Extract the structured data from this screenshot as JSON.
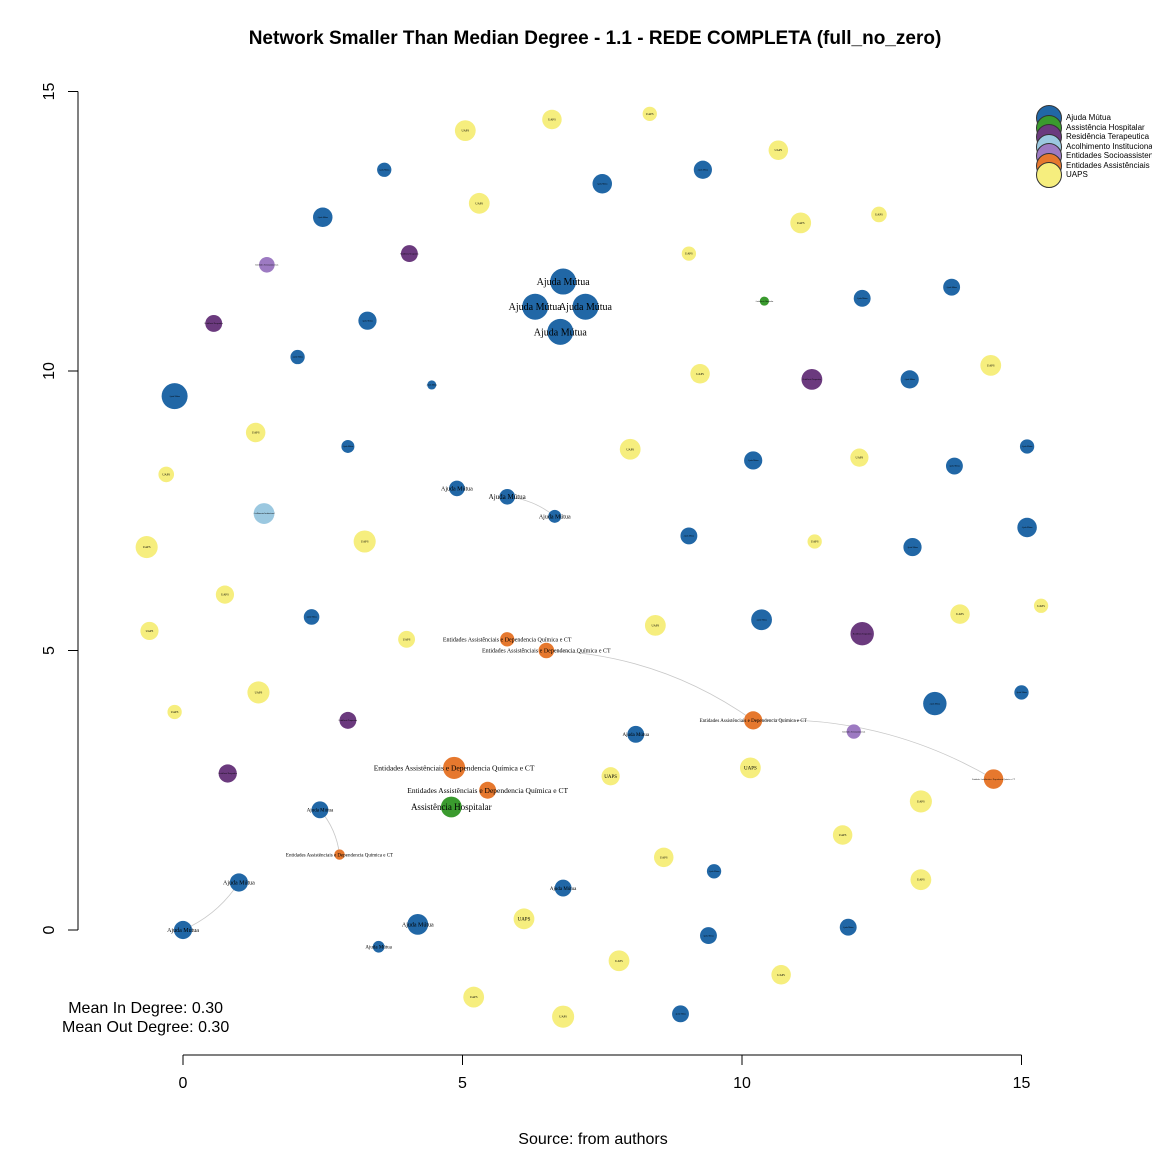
{
  "chart_data": {
    "type": "scatter",
    "title": "Network Smaller Than Median Degree - 1.1 - REDE COMPLETA (full_no_zero)",
    "source": "Source: from authors",
    "stats": {
      "mean_in": "Mean In Degree: 0.30",
      "mean_out": "Mean Out Degree: 0.30"
    },
    "xlim": [
      0,
      15
    ],
    "ylim": [
      0,
      15
    ],
    "x_ticks": [
      0,
      5,
      10,
      15
    ],
    "y_ticks": [
      0,
      5,
      10,
      15
    ],
    "grid": false,
    "legend_position": "top-right",
    "categories": {
      "AM": {
        "name": "Ajuda Mútua",
        "color": "#2167a6"
      },
      "AH": {
        "name": "Assistência Hospitalar",
        "color": "#3a9a2e"
      },
      "RT": {
        "name": "Residência Terapeutica",
        "color": "#6b3a7e"
      },
      "AI": {
        "name": "Acolhimento Institucional",
        "color": "#9bc8e0"
      },
      "ES": {
        "name": "Entidades Socioassistenciais",
        "color": "#9d7ac2"
      },
      "EA": {
        "name": "Entidades Assistênciais e Dependencia Química e CT",
        "color": "#e6782e"
      },
      "UA": {
        "name": "UAPS",
        "color": "#f6ee7e"
      }
    },
    "legend": [
      "Ajuda Mútua",
      "Assistência Hospitalar",
      "Residência Terapeutica",
      "Acolhimento Institucional",
      "Entidades Socioassistenciais",
      "Entidades Assistênciais e Dependencia Química e CT",
      "UAPS"
    ],
    "legend_colors": [
      "#2167a6",
      "#3a9a2e",
      "#6b3a7e",
      "#9bc8e0",
      "#9d7ac2",
      "#e6782e",
      "#f6ee7e"
    ],
    "nodes": [
      {
        "c": "AM",
        "x": 6.8,
        "y": 11.6,
        "s": 2,
        "l": "Ajuda Mútua",
        "ls": 10
      },
      {
        "c": "AM",
        "x": 6.3,
        "y": 11.15,
        "s": 2,
        "l": "Ajuda Mútua",
        "ls": 10
      },
      {
        "c": "AM",
        "x": 7.2,
        "y": 11.15,
        "s": 2,
        "l": "Ajuda Mútua",
        "ls": 10
      },
      {
        "c": "AM",
        "x": 6.75,
        "y": 10.7,
        "s": 2,
        "l": "Ajuda Mútua",
        "ls": 10
      },
      {
        "c": "AM",
        "x": -0.15,
        "y": 9.55,
        "s": 2,
        "l": "Ajuda Mútua",
        "ls": 2
      },
      {
        "c": "AM",
        "x": 2.5,
        "y": 12.75,
        "s": 1.5,
        "l": "Ajuda Mútua",
        "ls": 2
      },
      {
        "c": "AM",
        "x": 3.6,
        "y": 13.6,
        "s": 1.1,
        "l": "Ajuda Mútua",
        "ls": 2
      },
      {
        "c": "AM",
        "x": 7.5,
        "y": 13.35,
        "s": 1.5,
        "l": "Ajuda Mútua",
        "ls": 2
      },
      {
        "c": "AM",
        "x": 9.3,
        "y": 13.6,
        "s": 1.4,
        "l": "Ajuda Mútua",
        "ls": 2
      },
      {
        "c": "AM",
        "x": 3.3,
        "y": 10.9,
        "s": 1.4,
        "l": "Ajuda Mútua",
        "ls": 2
      },
      {
        "c": "AM",
        "x": 2.05,
        "y": 10.25,
        "s": 1.1,
        "l": "Ajuda Mútua",
        "ls": 2
      },
      {
        "c": "AM",
        "x": 4.45,
        "y": 9.75,
        "s": 0.7,
        "l": "Ajuda Mútua",
        "ls": 2
      },
      {
        "c": "AM",
        "x": 2.95,
        "y": 8.65,
        "s": 1,
        "l": "Ajuda Mútua",
        "ls": 2
      },
      {
        "c": "AM",
        "x": 4.9,
        "y": 7.9,
        "s": 1.2,
        "l": "Ajuda Mútua",
        "ls": 6
      },
      {
        "c": "AM",
        "x": 5.8,
        "y": 7.75,
        "s": 1.2,
        "l": "Ajuda Mútua",
        "ls": 7
      },
      {
        "c": "AM",
        "x": 6.65,
        "y": 7.4,
        "s": 1,
        "l": "Ajuda Mútua",
        "ls": 6
      },
      {
        "c": "AM",
        "x": 2.3,
        "y": 5.6,
        "s": 1.2,
        "l": "Ajuda Mútua",
        "ls": 2
      },
      {
        "c": "AM",
        "x": 12.15,
        "y": 11.3,
        "s": 1.3,
        "l": "Ajuda Mútua",
        "ls": 2
      },
      {
        "c": "AM",
        "x": 13.75,
        "y": 11.5,
        "s": 1.3,
        "l": "Ajuda Mútua",
        "ls": 2
      },
      {
        "c": "AM",
        "x": 13.0,
        "y": 9.85,
        "s": 1.4,
        "l": "Ajuda Mútua",
        "ls": 2
      },
      {
        "c": "AM",
        "x": 10.2,
        "y": 8.4,
        "s": 1.4,
        "l": "Ajuda Mútua",
        "ls": 2
      },
      {
        "c": "AM",
        "x": 13.8,
        "y": 8.3,
        "s": 1.3,
        "l": "Ajuda Mútua",
        "ls": 2
      },
      {
        "c": "AM",
        "x": 15.1,
        "y": 8.65,
        "s": 1.1,
        "l": "Ajuda Mútua",
        "ls": 2
      },
      {
        "c": "AM",
        "x": 9.05,
        "y": 7.05,
        "s": 1.3,
        "l": "Ajuda Mútua",
        "ls": 2
      },
      {
        "c": "AM",
        "x": 13.05,
        "y": 6.85,
        "s": 1.4,
        "l": "Ajuda Mútua",
        "ls": 2
      },
      {
        "c": "AM",
        "x": 15.1,
        "y": 7.2,
        "s": 1.5,
        "l": "Ajuda Mútua",
        "ls": 2
      },
      {
        "c": "AM",
        "x": 10.35,
        "y": 5.55,
        "s": 1.6,
        "l": "Ajuda Mútua",
        "ls": 2
      },
      {
        "c": "AM",
        "x": 13.45,
        "y": 4.05,
        "s": 1.8,
        "l": "Ajuda Mútua",
        "ls": 2
      },
      {
        "c": "AM",
        "x": 15.0,
        "y": 4.25,
        "s": 1.1,
        "l": "Ajuda Mútua",
        "ls": 2
      },
      {
        "c": "AM",
        "x": 8.1,
        "y": 3.5,
        "s": 1.3,
        "l": "Ajuda Mútua",
        "ls": 5
      },
      {
        "c": "AM",
        "x": 2.45,
        "y": 2.15,
        "s": 1.3,
        "l": "Ajuda Mútua",
        "ls": 5
      },
      {
        "c": "AM",
        "x": 1.0,
        "y": 0.85,
        "s": 1.4,
        "l": "Ajuda Mútua",
        "ls": 6
      },
      {
        "c": "AM",
        "x": 0.0,
        "y": 0.0,
        "s": 1.4,
        "l": "Ajuda Mútua",
        "ls": 6
      },
      {
        "c": "AM",
        "x": 4.2,
        "y": 0.1,
        "s": 1.6,
        "l": "Ajuda Mútua",
        "ls": 6
      },
      {
        "c": "AM",
        "x": 3.5,
        "y": -0.3,
        "s": 0.9,
        "l": "Ajuda Mútua",
        "ls": 5
      },
      {
        "c": "AM",
        "x": 6.8,
        "y": 0.75,
        "s": 1.3,
        "l": "Ajuda Mútua",
        "ls": 5
      },
      {
        "c": "AM",
        "x": 9.4,
        "y": -0.1,
        "s": 1.3,
        "l": "Ajuda Mútua",
        "ls": 2
      },
      {
        "c": "AM",
        "x": 9.5,
        "y": 1.05,
        "s": 1.1,
        "l": "Ajuda Mútua",
        "ls": 2
      },
      {
        "c": "AM",
        "x": 11.9,
        "y": 0.05,
        "s": 1.3,
        "l": "Ajuda Mútua",
        "ls": 2
      },
      {
        "c": "AM",
        "x": 8.9,
        "y": -1.5,
        "s": 1.3,
        "l": "Ajuda Mútua",
        "ls": 2
      },
      {
        "c": "AH",
        "x": 4.8,
        "y": 2.2,
        "s": 1.6,
        "l": "Assistência Hospitalar",
        "ls": 9
      },
      {
        "c": "AH",
        "x": 10.4,
        "y": 11.25,
        "s": 0.7,
        "l": "Assistência Hospitalar",
        "ls": 2
      },
      {
        "c": "RT",
        "x": 4.05,
        "y": 12.1,
        "s": 1.3,
        "l": "Residência Terapeutica",
        "ls": 2
      },
      {
        "c": "RT",
        "x": 0.55,
        "y": 10.85,
        "s": 1.3,
        "l": "Residência Terapeutica",
        "ls": 2
      },
      {
        "c": "RT",
        "x": 11.25,
        "y": 9.85,
        "s": 1.6,
        "l": "Residência Terapeutica",
        "ls": 2
      },
      {
        "c": "RT",
        "x": 12.15,
        "y": 5.3,
        "s": 1.8,
        "l": "Residência Terapeutica",
        "ls": 2
      },
      {
        "c": "RT",
        "x": 2.95,
        "y": 3.75,
        "s": 1.3,
        "l": "Residência Terapeutica",
        "ls": 2
      },
      {
        "c": "RT",
        "x": 0.8,
        "y": 2.8,
        "s": 1.4,
        "l": "Residência Terapeutica",
        "ls": 2
      },
      {
        "c": "AI",
        "x": 1.45,
        "y": 7.45,
        "s": 1.6,
        "l": "Acolhimento Institucional",
        "ls": 2
      },
      {
        "c": "ES",
        "x": 1.5,
        "y": 11.9,
        "s": 1.2,
        "l": "Entidades Socioassistenciais",
        "ls": 2
      },
      {
        "c": "ES",
        "x": 12.0,
        "y": 3.55,
        "s": 1.1,
        "l": "Entidades Socioassistenciais",
        "ls": 2
      },
      {
        "c": "EA",
        "x": 5.8,
        "y": 5.2,
        "s": 1.1,
        "l": "Entidades Assistênciais e Dependencia Química e CT",
        "ls": 6
      },
      {
        "c": "EA",
        "x": 6.5,
        "y": 5.0,
        "s": 1.2,
        "l": "Entidades Assistênciais e Dependencia Química e CT",
        "ls": 6
      },
      {
        "c": "EA",
        "x": 10.2,
        "y": 3.75,
        "s": 1.4,
        "l": "Entidades Assistênciais e Dependencia Química e CT",
        "ls": 5
      },
      {
        "c": "EA",
        "x": 14.5,
        "y": 2.7,
        "s": 1.5,
        "l": "Entidades Assistênciais e Dependencia Química e CT",
        "ls": 2
      },
      {
        "c": "EA",
        "x": 4.85,
        "y": 2.9,
        "s": 1.7,
        "l": "Entidades Assistênciais e Dependencia Química e CT",
        "ls": 7.5
      },
      {
        "c": "EA",
        "x": 5.45,
        "y": 2.5,
        "s": 1.3,
        "l": "Entidades Assistênciais e Dependencia Química e CT",
        "ls": 7.5
      },
      {
        "c": "EA",
        "x": 2.8,
        "y": 1.35,
        "s": 0.8,
        "l": "Entidades Assistênciais e Dependencia Química e CT",
        "ls": 5
      },
      {
        "c": "UA",
        "x": 5.05,
        "y": 14.3,
        "s": 1.6,
        "l": "UAPS",
        "ls": 3
      },
      {
        "c": "UA",
        "x": 6.6,
        "y": 14.5,
        "s": 1.5,
        "l": "UAPS",
        "ls": 3
      },
      {
        "c": "UA",
        "x": 8.35,
        "y": 14.6,
        "s": 1.1,
        "l": "UAPS",
        "ls": 3
      },
      {
        "c": "UA",
        "x": 10.65,
        "y": 13.95,
        "s": 1.5,
        "l": "UAPS",
        "ls": 3
      },
      {
        "c": "UA",
        "x": 5.3,
        "y": 13.0,
        "s": 1.6,
        "l": "UAPS",
        "ls": 3
      },
      {
        "c": "UA",
        "x": 11.05,
        "y": 12.65,
        "s": 1.6,
        "l": "UAPS",
        "ls": 3
      },
      {
        "c": "UA",
        "x": 12.45,
        "y": 12.8,
        "s": 1.2,
        "l": "UAPS",
        "ls": 3
      },
      {
        "c": "UA",
        "x": 9.05,
        "y": 12.1,
        "s": 1.1,
        "l": "UAPS",
        "ls": 3
      },
      {
        "c": "UA",
        "x": 9.25,
        "y": 9.95,
        "s": 1.5,
        "l": "UAPS",
        "ls": 3
      },
      {
        "c": "UA",
        "x": 14.45,
        "y": 10.1,
        "s": 1.6,
        "l": "UAPS",
        "ls": 3
      },
      {
        "c": "UA",
        "x": 1.3,
        "y": 8.9,
        "s": 1.5,
        "l": "UAPS",
        "ls": 3
      },
      {
        "c": "UA",
        "x": 8.0,
        "y": 8.6,
        "s": 1.6,
        "l": "UAPS",
        "ls": 3
      },
      {
        "c": "UA",
        "x": 12.1,
        "y": 8.45,
        "s": 1.4,
        "l": "UAPS",
        "ls": 3
      },
      {
        "c": "UA",
        "x": -0.3,
        "y": 8.15,
        "s": 1.2,
        "l": "UAPS",
        "ls": 3
      },
      {
        "c": "UA",
        "x": -0.65,
        "y": 6.85,
        "s": 1.7,
        "l": "UAPS",
        "ls": 3
      },
      {
        "c": "UA",
        "x": 3.25,
        "y": 6.95,
        "s": 1.7,
        "l": "UAPS",
        "ls": 3
      },
      {
        "c": "UA",
        "x": 11.3,
        "y": 6.95,
        "s": 1.1,
        "l": "UAPS",
        "ls": 3
      },
      {
        "c": "UA",
        "x": 0.75,
        "y": 6.0,
        "s": 1.4,
        "l": "UAPS",
        "ls": 3
      },
      {
        "c": "UA",
        "x": 13.9,
        "y": 5.65,
        "s": 1.5,
        "l": "UAPS",
        "ls": 3
      },
      {
        "c": "UA",
        "x": 15.35,
        "y": 5.8,
        "s": 1.1,
        "l": "UAPS",
        "ls": 3
      },
      {
        "c": "UA",
        "x": 8.45,
        "y": 5.45,
        "s": 1.6,
        "l": "UAPS",
        "ls": 3
      },
      {
        "c": "UA",
        "x": -0.6,
        "y": 5.35,
        "s": 1.4,
        "l": "UAPS",
        "ls": 3
      },
      {
        "c": "UA",
        "x": 4.0,
        "y": 5.2,
        "s": 1.3,
        "l": "UAPS",
        "ls": 3
      },
      {
        "c": "UA",
        "x": 1.35,
        "y": 4.25,
        "s": 1.7,
        "l": "UAPS",
        "ls": 3
      },
      {
        "c": "UA",
        "x": -0.15,
        "y": 3.9,
        "s": 1.1,
        "l": "UAPS",
        "ls": 3
      },
      {
        "c": "UA",
        "x": 10.15,
        "y": 2.9,
        "s": 1.6,
        "l": "UAPS",
        "ls": 5
      },
      {
        "c": "UA",
        "x": 7.65,
        "y": 2.75,
        "s": 1.4,
        "l": "UAPS",
        "ls": 5
      },
      {
        "c": "UA",
        "x": 13.2,
        "y": 2.3,
        "s": 1.7,
        "l": "UAPS",
        "ls": 3
      },
      {
        "c": "UA",
        "x": 11.8,
        "y": 1.7,
        "s": 1.5,
        "l": "UAPS",
        "ls": 3
      },
      {
        "c": "UA",
        "x": 8.6,
        "y": 1.3,
        "s": 1.5,
        "l": "UAPS",
        "ls": 3
      },
      {
        "c": "UA",
        "x": 13.2,
        "y": 0.9,
        "s": 1.6,
        "l": "UAPS",
        "ls": 3
      },
      {
        "c": "UA",
        "x": 6.1,
        "y": 0.2,
        "s": 1.6,
        "l": "UAPS",
        "ls": 5
      },
      {
        "c": "UA",
        "x": 7.8,
        "y": -0.55,
        "s": 1.6,
        "l": "UAPS",
        "ls": 3
      },
      {
        "c": "UA",
        "x": 10.7,
        "y": -0.8,
        "s": 1.5,
        "l": "UAPS",
        "ls": 3
      },
      {
        "c": "UA",
        "x": 5.2,
        "y": -1.2,
        "s": 1.6,
        "l": "UAPS",
        "ls": 3
      },
      {
        "c": "UA",
        "x": 6.8,
        "y": -1.55,
        "s": 1.7,
        "l": "UAPS",
        "ls": 3
      }
    ],
    "edges": [
      [
        14,
        15
      ],
      [
        52,
        53
      ],
      [
        53,
        54
      ],
      [
        30,
        57
      ],
      [
        31,
        32
      ]
    ]
  }
}
